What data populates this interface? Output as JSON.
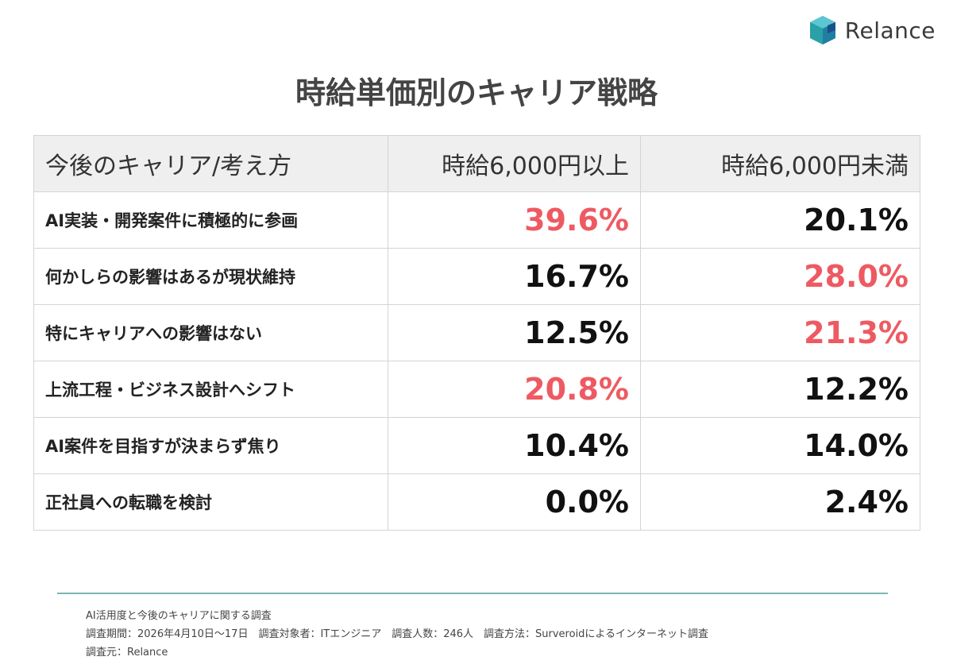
{
  "brand": {
    "name": "Relance"
  },
  "chart_data": {
    "type": "table",
    "title": "時給単価別のキャリア戦略",
    "header": [
      "今後のキャリア/考え方",
      "時給6,000円以上",
      "時給6,000円未満"
    ],
    "rows": [
      {
        "label": "AI実装・開発案件に積極的に参画",
        "values": [
          "39.6%",
          "20.1%"
        ],
        "highlight": [
          true,
          false
        ]
      },
      {
        "label": "何かしらの影響はあるが現状維持",
        "values": [
          "16.7%",
          "28.0%"
        ],
        "highlight": [
          false,
          true
        ]
      },
      {
        "label": "特にキャリアへの影響はない",
        "values": [
          "12.5%",
          "21.3%"
        ],
        "highlight": [
          false,
          true
        ]
      },
      {
        "label": "上流工程・ビジネス設計へシフト",
        "values": [
          "20.8%",
          "12.2%"
        ],
        "highlight": [
          true,
          false
        ]
      },
      {
        "label": "AI案件を目指すが決まらず焦り",
        "values": [
          "10.4%",
          "14.0%"
        ],
        "highlight": [
          false,
          false
        ]
      },
      {
        "label": "正社員への転職を検討",
        "values": [
          "0.0%",
          "2.4%"
        ],
        "highlight": [
          false,
          false
        ]
      }
    ],
    "highlight_color": "#ee5a62"
  },
  "footer": {
    "line1": "AI活用度と今後のキャリアに関する調査",
    "line2": "調査期間：2026年4月10日〜17日　調査対象者：ITエンジニア　調査人数：246人　調査方法：Surveroidによるインターネット調査",
    "line3": "調査元：Relance"
  }
}
